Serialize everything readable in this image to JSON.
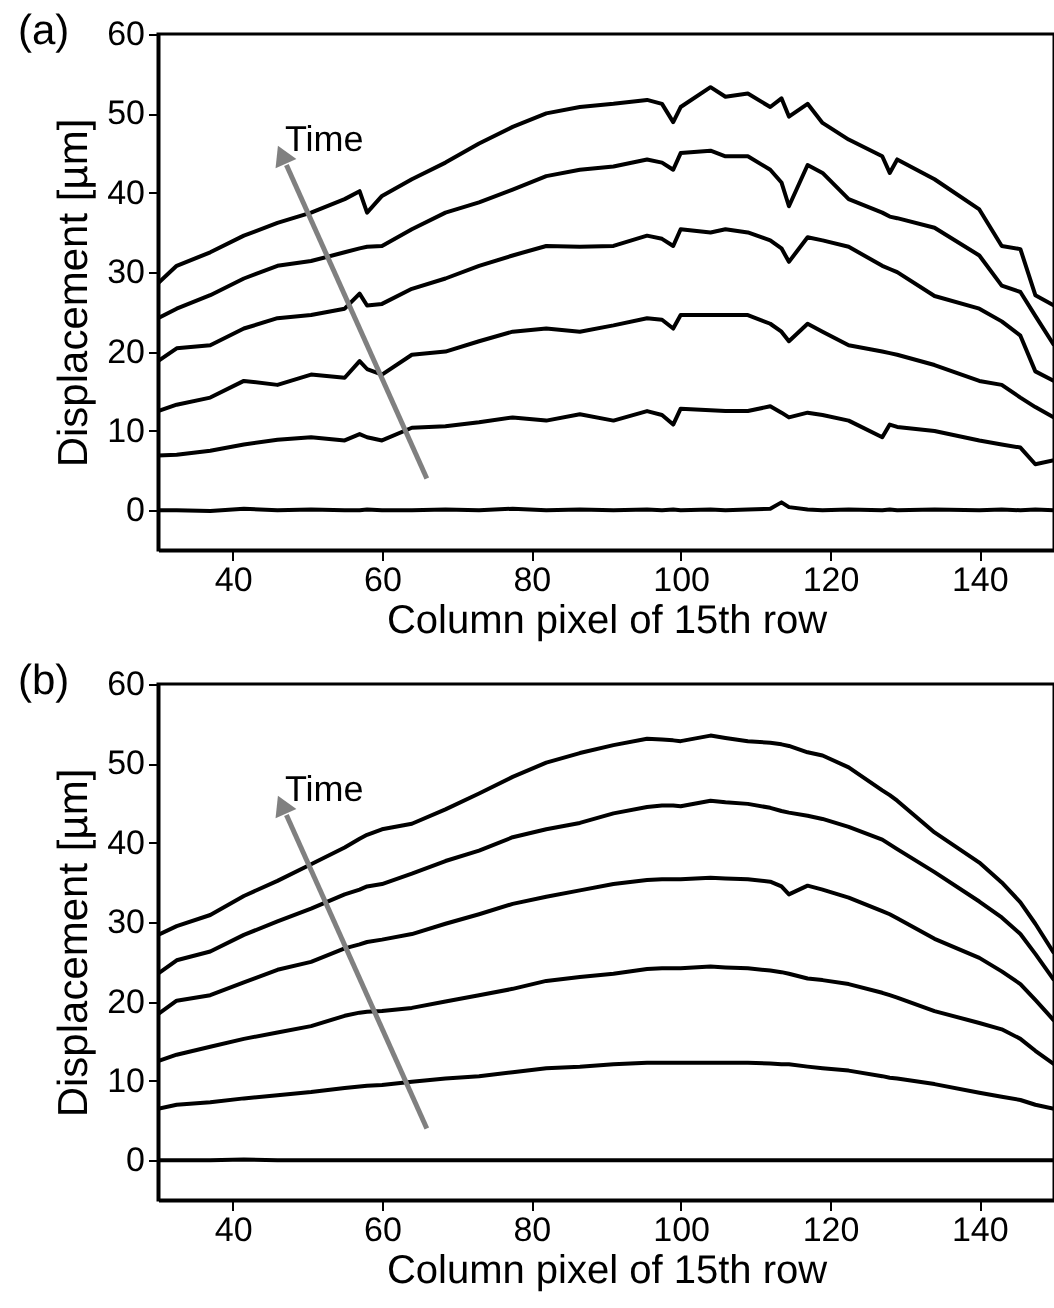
{
  "chart_data": [
    {
      "type": "line",
      "title": "(a)",
      "xlabel": "Column pixel of 15th row",
      "ylabel": "Displacement [µm]",
      "annotations": [
        "Time"
      ],
      "x": [
        30,
        32.5,
        37,
        41.5,
        46,
        50.5,
        55,
        57,
        58,
        60,
        64,
        68.5,
        73,
        77.5,
        82,
        86.5,
        91,
        95.5,
        97.5,
        99,
        100,
        104,
        106,
        109,
        112,
        113.5,
        114.5,
        117,
        119,
        122.5,
        127,
        128,
        129,
        134,
        140,
        143,
        145.5,
        147.5,
        150
      ],
      "xlim": [
        30,
        150
      ],
      "xticks": [
        40,
        60,
        80,
        100,
        120,
        140
      ],
      "ylim": [
        -5,
        60
      ],
      "yticks": [
        0,
        10,
        20,
        30,
        40,
        50,
        60
      ],
      "grid": false,
      "marker": "none",
      "line_style": "solid",
      "series": [
        {
          "color": "#000000",
          "values": [
            0,
            0,
            -0.1,
            0.2,
            0,
            0.1,
            0,
            0,
            0.1,
            0,
            0,
            0.1,
            0,
            0.2,
            0,
            0.1,
            0,
            0.1,
            0,
            0.1,
            0,
            0.1,
            0,
            0.1,
            0.2,
            1,
            0.4,
            0.1,
            0,
            0.1,
            0,
            0.1,
            0,
            0.1,
            0,
            0.1,
            0,
            0.1,
            0
          ]
        },
        {
          "color": "#000000",
          "values": [
            6.9,
            7,
            7.5,
            8.3,
            8.9,
            9.2,
            8.8,
            9.6,
            9.2,
            8.8,
            10.4,
            10.6,
            11.1,
            11.7,
            11.3,
            12.1,
            11.3,
            12.5,
            12,
            10.8,
            12.8,
            12.6,
            12.5,
            12.5,
            13.1,
            12.3,
            11.7,
            12.3,
            12,
            11.3,
            9.2,
            10.8,
            10.5,
            10,
            8.8,
            8.3,
            7.9,
            5.8,
            6.3
          ]
        },
        {
          "color": "#000000",
          "values": [
            12.5,
            13.3,
            14.2,
            16.3,
            15.8,
            17.1,
            16.7,
            18.8,
            17.8,
            17.1,
            19.6,
            20,
            21.3,
            22.5,
            22.9,
            22.5,
            23.3,
            24.2,
            24,
            22.9,
            24.6,
            24.6,
            24.6,
            24.6,
            23.5,
            22.5,
            21.3,
            23.5,
            22.5,
            20.8,
            20,
            19.8,
            19.6,
            18.3,
            16.3,
            15.8,
            14.2,
            13,
            11.7
          ]
        },
        {
          "color": "#000000",
          "values": [
            18.8,
            20.4,
            20.8,
            22.9,
            24.2,
            24.6,
            25.4,
            27.3,
            25.8,
            26,
            27.9,
            29.2,
            30.8,
            32.1,
            33.3,
            33.2,
            33.3,
            34.6,
            34.2,
            33.3,
            35.4,
            35,
            35.4,
            35,
            34,
            33,
            31.3,
            34.4,
            34,
            33.2,
            30.8,
            30.4,
            30,
            27,
            25.4,
            23.8,
            22,
            17.5,
            16.3
          ]
        },
        {
          "color": "#000000",
          "values": [
            24.2,
            25.4,
            27.1,
            29.2,
            30.8,
            31.4,
            32.5,
            33,
            33.2,
            33.3,
            35.4,
            37.5,
            38.8,
            40.4,
            42.1,
            42.9,
            43.3,
            44.2,
            43.8,
            42.9,
            45,
            45.3,
            44.6,
            44.6,
            42.9,
            41.3,
            38.3,
            43.5,
            42.5,
            39.2,
            37.5,
            37,
            36.8,
            35.6,
            32.1,
            28.3,
            27.5,
            24.5,
            20.8
          ]
        },
        {
          "color": "#000000",
          "values": [
            28.6,
            30.8,
            32.5,
            34.6,
            36.2,
            37.5,
            39.2,
            40.2,
            37.5,
            39.6,
            41.7,
            43.8,
            46.2,
            48.3,
            50,
            50.8,
            51.2,
            51.7,
            51.2,
            48.9,
            50.8,
            53.3,
            52.1,
            52.5,
            50.8,
            51.9,
            49.6,
            51.2,
            48.8,
            46.7,
            44.6,
            42.5,
            44.2,
            41.7,
            37.9,
            33.3,
            32.9,
            27.1,
            25.8
          ]
        }
      ]
    },
    {
      "type": "line",
      "title": "(b)",
      "xlabel": "Column pixel of 15th row",
      "ylabel": "Displacement [µm]",
      "annotations": [
        "Time"
      ],
      "x": [
        30,
        32.5,
        37,
        41.5,
        46,
        50.5,
        55,
        57,
        58,
        60,
        64,
        68.5,
        73,
        77.5,
        82,
        86.5,
        91,
        95.5,
        97.5,
        99,
        100,
        104,
        106,
        109,
        112,
        113.5,
        114.5,
        117,
        119,
        122.5,
        127,
        128,
        129,
        134,
        140,
        143,
        145.5,
        147.5,
        150
      ],
      "xlim": [
        30,
        150
      ],
      "xticks": [
        40,
        60,
        80,
        100,
        120,
        140
      ],
      "ylim": [
        -5,
        60
      ],
      "yticks": [
        0,
        10,
        20,
        30,
        40,
        50,
        60
      ],
      "grid": false,
      "marker": "none",
      "line_style": "solid",
      "series": [
        {
          "color": "#000000",
          "values": [
            0,
            0,
            0,
            0.1,
            0,
            0,
            0,
            0,
            0,
            0,
            0,
            0,
            0,
            0,
            0,
            0,
            0,
            0,
            0,
            0,
            0,
            0,
            0,
            0,
            0,
            0,
            0,
            0,
            0,
            0,
            0,
            0,
            0,
            0,
            0,
            0,
            0,
            0,
            0
          ]
        },
        {
          "color": "#000000",
          "values": [
            6.5,
            7,
            7.3,
            7.8,
            8.2,
            8.6,
            9.1,
            9.3,
            9.4,
            9.5,
            9.9,
            10.3,
            10.6,
            11.1,
            11.6,
            11.8,
            12.1,
            12.3,
            12.3,
            12.3,
            12.3,
            12.3,
            12.3,
            12.3,
            12.2,
            12.1,
            12.1,
            11.8,
            11.6,
            11.3,
            10.6,
            10.4,
            10.3,
            9.6,
            8.5,
            8,
            7.6,
            7,
            6.5
          ]
        },
        {
          "color": "#000000",
          "values": [
            12.5,
            13.3,
            14.3,
            15.3,
            16.1,
            16.9,
            18.2,
            18.6,
            18.7,
            18.8,
            19.2,
            20,
            20.8,
            21.6,
            22.6,
            23.1,
            23.5,
            24.1,
            24.2,
            24.2,
            24.2,
            24.4,
            24.3,
            24.2,
            23.9,
            23.7,
            23.5,
            22.9,
            22.7,
            22.2,
            21.1,
            20.8,
            20.5,
            18.8,
            17.3,
            16.5,
            15.3,
            13.8,
            12.1
          ]
        },
        {
          "color": "#000000",
          "values": [
            18.4,
            20.1,
            20.8,
            22.4,
            24,
            25,
            26.7,
            27.2,
            27.5,
            27.8,
            28.5,
            29.8,
            31,
            32.3,
            33.2,
            34,
            34.8,
            35.3,
            35.4,
            35.4,
            35.4,
            35.6,
            35.5,
            35.4,
            35.1,
            34.5,
            33.5,
            34.6,
            34.1,
            33.1,
            31.4,
            31,
            30.5,
            27.9,
            25.5,
            23.8,
            22.2,
            20.2,
            17.6
          ]
        },
        {
          "color": "#000000",
          "values": [
            23.5,
            25.2,
            26.3,
            28.4,
            30.1,
            31.7,
            33.5,
            34.1,
            34.5,
            34.8,
            36.1,
            37.7,
            39,
            40.7,
            41.7,
            42.5,
            43.7,
            44.5,
            44.7,
            44.7,
            44.6,
            45.3,
            45.1,
            44.9,
            44.4,
            44,
            43.8,
            43.4,
            43,
            42,
            40.4,
            39.8,
            39.2,
            36.3,
            32.6,
            30.6,
            28.5,
            26,
            22.7
          ]
        },
        {
          "color": "#000000",
          "values": [
            28.4,
            29.5,
            30.9,
            33.3,
            35.2,
            37.3,
            39.4,
            40.5,
            41,
            41.7,
            42.4,
            44.2,
            46.2,
            48.3,
            50.1,
            51.3,
            52.3,
            53.1,
            53,
            52.9,
            52.8,
            53.5,
            53.2,
            52.8,
            52.6,
            52.4,
            52.2,
            51.4,
            51,
            49.5,
            46.6,
            46,
            45.3,
            41.3,
            37.5,
            35,
            32.5,
            29.8,
            26.1
          ]
        }
      ]
    }
  ]
}
